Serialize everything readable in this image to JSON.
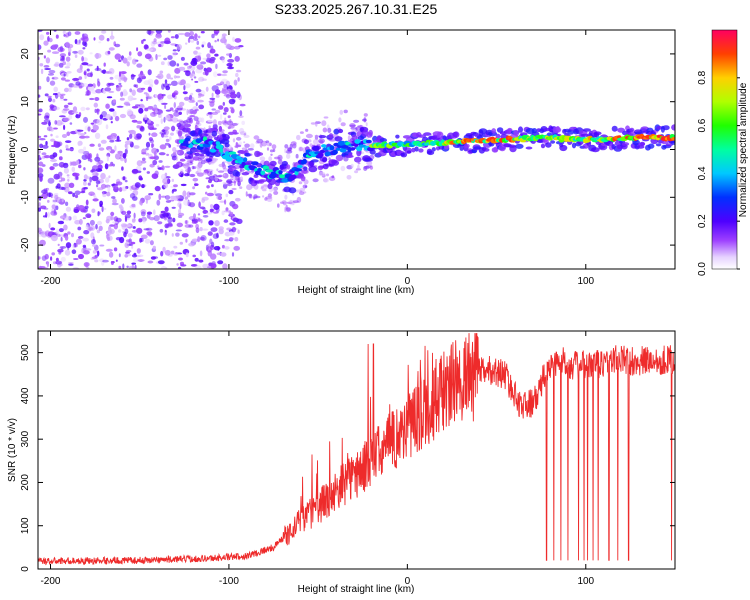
{
  "title": "S233.2025.267.10.31.E25",
  "chart_data": [
    {
      "type": "heatmap",
      "name": "spectrogram",
      "xlabel": "Height of straight line (km)",
      "ylabel": "Frequency (Hz)",
      "xlim": [
        -207,
        150
      ],
      "ylim": [
        -25,
        25
      ],
      "xticks": [
        -200,
        -100,
        0,
        100
      ],
      "yticks": [
        -20,
        -10,
        0,
        10,
        20
      ],
      "colorbar": {
        "label": "Normalized spectral amplitude",
        "range": [
          0,
          1
        ],
        "ticks": [
          0.0,
          0.2,
          0.4,
          0.6,
          0.8
        ]
      },
      "ridge": [
        {
          "x": -125,
          "y": 2
        },
        {
          "x": -110,
          "y": 1
        },
        {
          "x": -95,
          "y": -2
        },
        {
          "x": -85,
          "y": -4
        },
        {
          "x": -75,
          "y": -5
        },
        {
          "x": -65,
          "y": -6
        },
        {
          "x": -55,
          "y": -1
        },
        {
          "x": -45,
          "y": 0
        },
        {
          "x": -35,
          "y": 1
        },
        {
          "x": -20,
          "y": 1
        },
        {
          "x": 0,
          "y": 1
        },
        {
          "x": 25,
          "y": 1.5
        },
        {
          "x": 50,
          "y": 2
        },
        {
          "x": 75,
          "y": 2.5
        },
        {
          "x": 100,
          "y": 2
        },
        {
          "x": 125,
          "y": 2.5
        },
        {
          "x": 150,
          "y": 2.5
        }
      ]
    },
    {
      "type": "line",
      "name": "snr",
      "xlabel": "Height of straight line (km)",
      "ylabel": "SNR (10 * v/v)",
      "xlim": [
        -207,
        150
      ],
      "ylim": [
        0,
        550
      ],
      "xticks": [
        -200,
        -100,
        0,
        100
      ],
      "yticks": [
        0,
        100,
        200,
        300,
        400,
        500
      ],
      "color": "#ee2b2b",
      "trend": [
        {
          "x": -207,
          "y": 18
        },
        {
          "x": -150,
          "y": 20
        },
        {
          "x": -110,
          "y": 25
        },
        {
          "x": -90,
          "y": 30
        },
        {
          "x": -75,
          "y": 50
        },
        {
          "x": -60,
          "y": 110
        },
        {
          "x": -45,
          "y": 160
        },
        {
          "x": -35,
          "y": 200
        },
        {
          "x": -25,
          "y": 230
        },
        {
          "x": -10,
          "y": 290
        },
        {
          "x": 0,
          "y": 330
        },
        {
          "x": 10,
          "y": 370
        },
        {
          "x": 20,
          "y": 410
        },
        {
          "x": 30,
          "y": 440
        },
        {
          "x": 45,
          "y": 460
        },
        {
          "x": 55,
          "y": 450
        },
        {
          "x": 60,
          "y": 400
        },
        {
          "x": 65,
          "y": 375
        },
        {
          "x": 72,
          "y": 390
        },
        {
          "x": 78,
          "y": 460
        },
        {
          "x": 85,
          "y": 480
        },
        {
          "x": 95,
          "y": 470
        },
        {
          "x": 105,
          "y": 470
        },
        {
          "x": 115,
          "y": 485
        },
        {
          "x": 130,
          "y": 480
        },
        {
          "x": 150,
          "y": 485
        }
      ],
      "drops": [
        78,
        82,
        86,
        90,
        96,
        99,
        101,
        104,
        107,
        113,
        118,
        124,
        148
      ]
    }
  ]
}
